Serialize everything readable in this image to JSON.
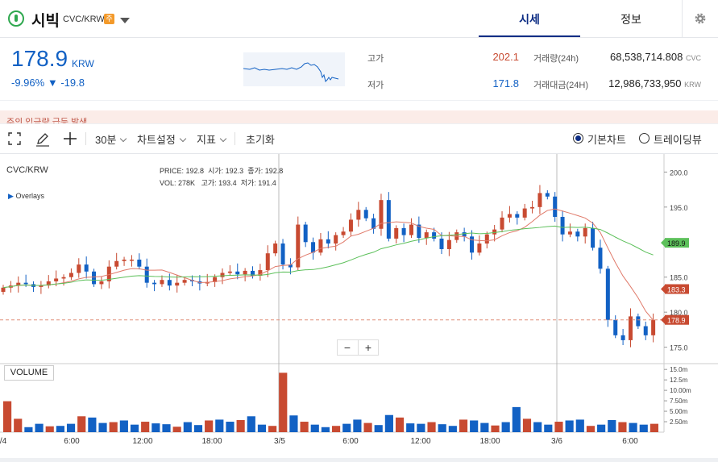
{
  "header": {
    "coin_name": "시빅",
    "pair": "CVC/KRW",
    "badge": "주",
    "tabs": [
      {
        "label": "시세",
        "active": true
      },
      {
        "label": "정보",
        "active": false
      }
    ],
    "accent": "#0d2d84"
  },
  "summary": {
    "price": "178.9",
    "currency": "KRW",
    "change_pct": "-9.96%",
    "change_arrow": "▼",
    "change_val": "-19.8",
    "high_label": "고가",
    "high_value": "202.1",
    "low_label": "저가",
    "low_value": "171.8",
    "vol_label": "거래량(24h)",
    "vol_value": "68,538,714.808",
    "vol_unit": "CVC",
    "amt_label": "거래대금(24H)",
    "amt_value": "12,986,733,950",
    "amt_unit": "KRW",
    "up_color": "#c84a31",
    "down_color": "#1261c4"
  },
  "notice": {
    "text": "주의 입금량 급등 발생"
  },
  "toolbar": {
    "interval": "30분",
    "chart_settings": "차트설정",
    "indicators": "지표",
    "reset": "초기화",
    "basic_chart": "기본차트",
    "tradingview": "트레이딩뷰"
  },
  "chart_overlay": {
    "symbol": "CVC/KRW",
    "overlays": "Overlays",
    "price_label": "PRICE:",
    "price_value": "192.8",
    "open_label": "시가:",
    "open_value": "192.3",
    "close_label": "종가:",
    "close_value": "192.8",
    "vol_label": "VOL:",
    "vol_value": "278K",
    "high_label": "고가:",
    "high_value": "193.4",
    "low_label": "저가:",
    "low_value": "191.4",
    "volume_label": "VOLUME",
    "zoom_out": "−",
    "zoom_in": "+"
  },
  "chart_data": {
    "type": "candlestick",
    "x_ticks": [
      "/4",
      "6:00",
      "12:00",
      "18:00",
      "3/5",
      "6:00",
      "12:00",
      "18:00",
      "3/6",
      "6:00"
    ],
    "y_ticks": [
      "200.0",
      "195.0",
      "190.0",
      "185.0",
      "180.0",
      "175.0"
    ],
    "volume_ticks": [
      "15.0m",
      "12.5m",
      "10.00m",
      "7.50m",
      "5.00m",
      "2.50m"
    ],
    "ma_labels": [
      {
        "value": "189.9",
        "color": "#5cc05a"
      },
      {
        "value": "183.3",
        "color": "#c84a31"
      },
      {
        "value": "178.9",
        "color": "#c84a31"
      }
    ],
    "ylim": [
      173,
      202
    ],
    "current_price": 178.9,
    "close_path": [
      183.5,
      183.8,
      184.2,
      184.0,
      183.6,
      183.8,
      184.4,
      184.8,
      185.0,
      185.6,
      186.8,
      185.8,
      184.0,
      184.4,
      186.5,
      187.3,
      187.5,
      187.5,
      186.5,
      184.2,
      184.0,
      184.6,
      183.8,
      184.2,
      184.6,
      184.4,
      184.1,
      184.3,
      185.0,
      185.6,
      185.8,
      185.4,
      185.9,
      185.2,
      186.0,
      188.4,
      189.8,
      186.8,
      186.4,
      192.5,
      190.0,
      188.5,
      190.4,
      189.8,
      191.0,
      191.5,
      193.2,
      194.6,
      193.4,
      191.9,
      196.0,
      190.5,
      192.0,
      191.0,
      192.5,
      190.6,
      191.4,
      190.5,
      189.0,
      190.3,
      191.4,
      190.8,
      188.5,
      189.8,
      191.1,
      191.8,
      193.5,
      194.0,
      193.5,
      194.8,
      195.0,
      197.0,
      196.5,
      193.6,
      191.1,
      191.5,
      190.8,
      192.0,
      189.2,
      186.2,
      178.9,
      176.7,
      176.0,
      179.4,
      178.0,
      176.7,
      178.9
    ],
    "volume": [
      7.4,
      3.2,
      1.2,
      2.0,
      1.4,
      1.5,
      2.0,
      3.8,
      3.5,
      2.2,
      2.4,
      2.8,
      1.8,
      2.5,
      2.1,
      1.9,
      1.3,
      2.4,
      1.7,
      2.8,
      3.0,
      2.5,
      2.9,
      3.8,
      1.8,
      1.5,
      14.2,
      4.0,
      2.5,
      1.8,
      1.2,
      1.5,
      2.0,
      3.0,
      2.2,
      1.7,
      4.1,
      3.5,
      2.1,
      2.0,
      2.4,
      1.9,
      1.5,
      3.0,
      2.8,
      2.2,
      1.6,
      2.4,
      6.0,
      3.2,
      2.4,
      1.8,
      2.5,
      2.8,
      3.0,
      1.5,
      1.8,
      2.9,
      2.4,
      2.2,
      1.8,
      2.0
    ]
  }
}
